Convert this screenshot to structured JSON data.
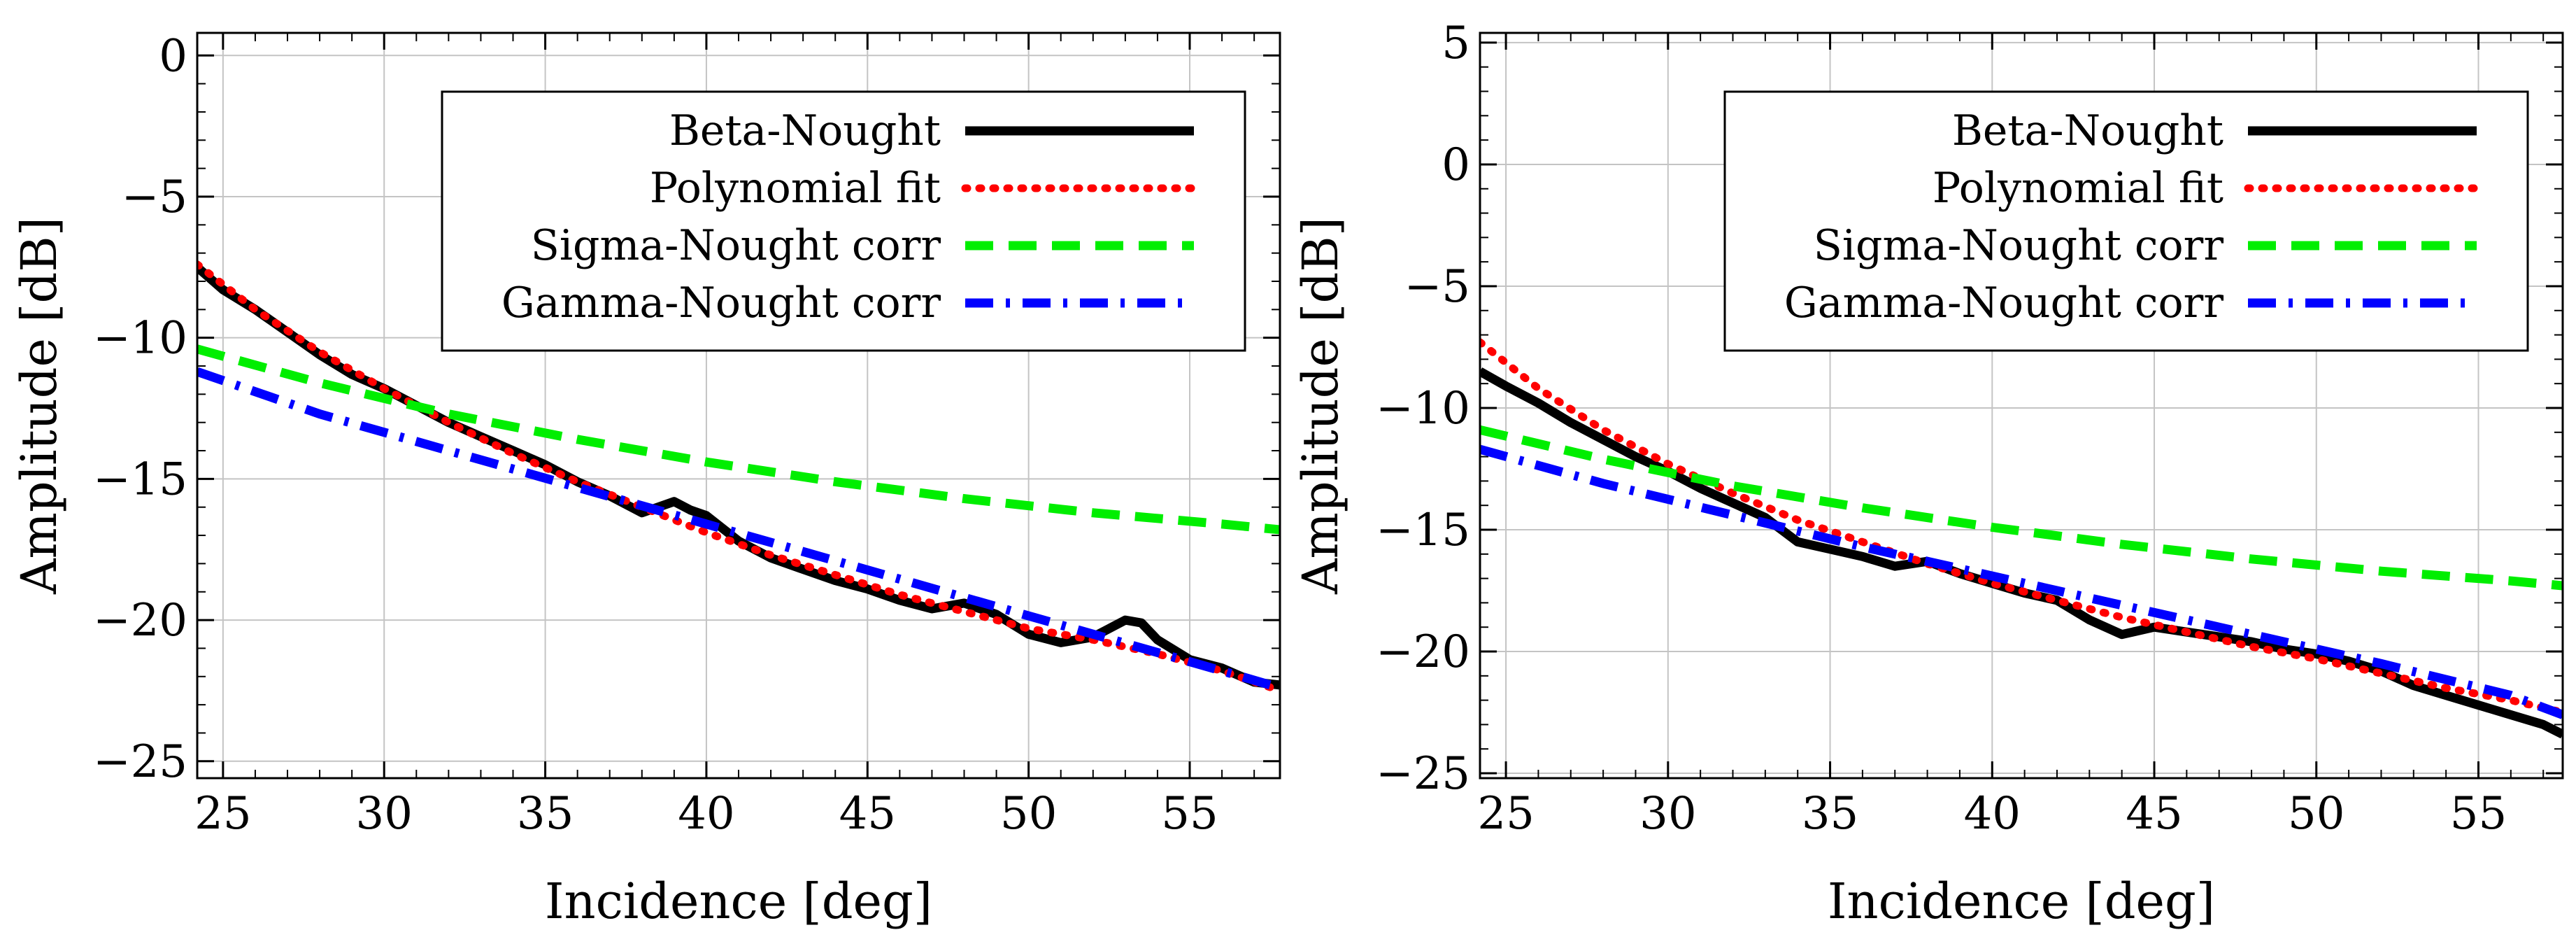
{
  "chart_data": [
    {
      "type": "line",
      "title": "",
      "xlabel": "Incidence [deg]",
      "ylabel": "Amplitude [dB]",
      "xlim": [
        24.2,
        57.8
      ],
      "ylim": [
        -25.6,
        0.8
      ],
      "xticks": [
        25,
        30,
        35,
        40,
        45,
        50,
        55
      ],
      "yticks": [
        0,
        -5,
        -10,
        -15,
        -20,
        -25
      ],
      "xtick_labels": [
        "25",
        "30",
        "35",
        "40",
        "45",
        "50",
        "55"
      ],
      "ytick_labels": [
        "0",
        "−5",
        "−10",
        "−15",
        "−20",
        "−25"
      ],
      "grid": true,
      "legend_position": "top-right",
      "series": [
        {
          "name": "Beta-Nought",
          "color": "#000000",
          "style": "solid",
          "x": [
            24.2,
            25,
            26,
            27,
            28,
            29,
            30,
            31,
            32,
            33,
            34,
            35,
            36,
            37,
            38,
            38.5,
            39,
            39.5,
            40,
            41,
            42,
            43,
            44,
            45,
            46,
            47,
            48,
            49,
            50,
            51,
            52,
            52.5,
            53,
            53.5,
            54,
            55,
            56,
            57,
            57.8
          ],
          "y": [
            -7.5,
            -8.3,
            -9.0,
            -9.8,
            -10.6,
            -11.3,
            -11.8,
            -12.4,
            -13.0,
            -13.5,
            -14.0,
            -14.5,
            -15.1,
            -15.6,
            -16.2,
            -16.0,
            -15.8,
            -16.1,
            -16.3,
            -17.2,
            -17.8,
            -18.2,
            -18.6,
            -18.9,
            -19.3,
            -19.6,
            -19.4,
            -19.8,
            -20.5,
            -20.8,
            -20.6,
            -20.3,
            -20.0,
            -20.1,
            -20.7,
            -21.4,
            -21.7,
            -22.2,
            -22.3
          ]
        },
        {
          "name": "Polynomial fit",
          "color": "#ff0000",
          "style": "dotted",
          "x": [
            24.2,
            26,
            28,
            30,
            32,
            34,
            36,
            38,
            40,
            42,
            44,
            46,
            48,
            50,
            52,
            54,
            56,
            57.8
          ],
          "y": [
            -7.4,
            -9.0,
            -10.5,
            -11.8,
            -13.0,
            -14.1,
            -15.1,
            -16.0,
            -16.9,
            -17.7,
            -18.4,
            -19.1,
            -19.7,
            -20.3,
            -20.7,
            -21.2,
            -21.8,
            -22.5
          ]
        },
        {
          "name": "Sigma-Nought corr",
          "color": "#00ee00",
          "style": "dashed",
          "x": [
            24.2,
            28,
            32,
            36,
            40,
            44,
            48,
            52,
            56,
            57.8
          ],
          "y": [
            -10.4,
            -11.6,
            -12.7,
            -13.6,
            -14.4,
            -15.1,
            -15.7,
            -16.2,
            -16.6,
            -16.8
          ]
        },
        {
          "name": "Gamma-Nought corr",
          "color": "#0000ff",
          "style": "dashdot",
          "x": [
            24.2,
            28,
            32,
            36,
            40,
            44,
            48,
            52,
            56,
            57.8
          ],
          "y": [
            -11.2,
            -12.7,
            -14.0,
            -15.3,
            -16.6,
            -17.9,
            -19.2,
            -20.5,
            -21.8,
            -22.4
          ]
        }
      ]
    },
    {
      "type": "line",
      "title": "",
      "xlabel": "Incidence [deg]",
      "ylabel": "Amplitude [dB]",
      "xlim": [
        24.2,
        57.6
      ],
      "ylim": [
        -25.2,
        5.4
      ],
      "xticks": [
        25,
        30,
        35,
        40,
        45,
        50,
        55
      ],
      "yticks": [
        5,
        0,
        -5,
        -10,
        -15,
        -20,
        -25
      ],
      "xtick_labels": [
        "25",
        "30",
        "35",
        "40",
        "45",
        "50",
        "55"
      ],
      "ytick_labels": [
        "5",
        "0",
        "−5",
        "−10",
        "−15",
        "−20",
        "−25"
      ],
      "grid": true,
      "legend_position": "top-right",
      "series": [
        {
          "name": "Beta-Nought",
          "color": "#000000",
          "style": "solid",
          "x": [
            24.2,
            25,
            26,
            27,
            28,
            29,
            30,
            31,
            32,
            33,
            34,
            35,
            36,
            37,
            38,
            39,
            40,
            41,
            42,
            43,
            44,
            45,
            46,
            47,
            48,
            49,
            50,
            51,
            52,
            53,
            54,
            55,
            56,
            57,
            57.6
          ],
          "y": [
            -8.5,
            -9.1,
            -9.8,
            -10.6,
            -11.3,
            -12.0,
            -12.6,
            -13.3,
            -13.9,
            -14.5,
            -15.5,
            -15.8,
            -16.1,
            -16.5,
            -16.3,
            -16.8,
            -17.2,
            -17.6,
            -17.9,
            -18.7,
            -19.3,
            -19.0,
            -19.2,
            -19.4,
            -19.6,
            -19.9,
            -20.1,
            -20.4,
            -20.8,
            -21.4,
            -21.8,
            -22.2,
            -22.6,
            -23.0,
            -23.4
          ]
        },
        {
          "name": "Polynomial fit",
          "color": "#ff0000",
          "style": "dotted",
          "x": [
            24.2,
            26,
            28,
            30,
            32,
            34,
            36,
            38,
            40,
            42,
            44,
            46,
            48,
            50,
            52,
            54,
            56,
            57.6
          ],
          "y": [
            -7.3,
            -9.2,
            -10.9,
            -12.3,
            -13.5,
            -14.6,
            -15.5,
            -16.4,
            -17.2,
            -17.9,
            -18.6,
            -19.2,
            -19.8,
            -20.3,
            -20.9,
            -21.5,
            -22.0,
            -22.5
          ]
        },
        {
          "name": "Sigma-Nought corr",
          "color": "#00ee00",
          "style": "dashed",
          "x": [
            24.2,
            28,
            32,
            36,
            40,
            44,
            48,
            52,
            56,
            57.6
          ],
          "y": [
            -10.9,
            -12.1,
            -13.2,
            -14.1,
            -14.9,
            -15.6,
            -16.2,
            -16.7,
            -17.1,
            -17.3
          ]
        },
        {
          "name": "Gamma-Nought corr",
          "color": "#0000ff",
          "style": "dashdot",
          "x": [
            24.2,
            28,
            32,
            36,
            40,
            44,
            48,
            52,
            56,
            57.6
          ],
          "y": [
            -11.7,
            -13.1,
            -14.4,
            -15.7,
            -16.9,
            -18.1,
            -19.3,
            -20.5,
            -21.8,
            -22.6
          ]
        }
      ]
    }
  ]
}
